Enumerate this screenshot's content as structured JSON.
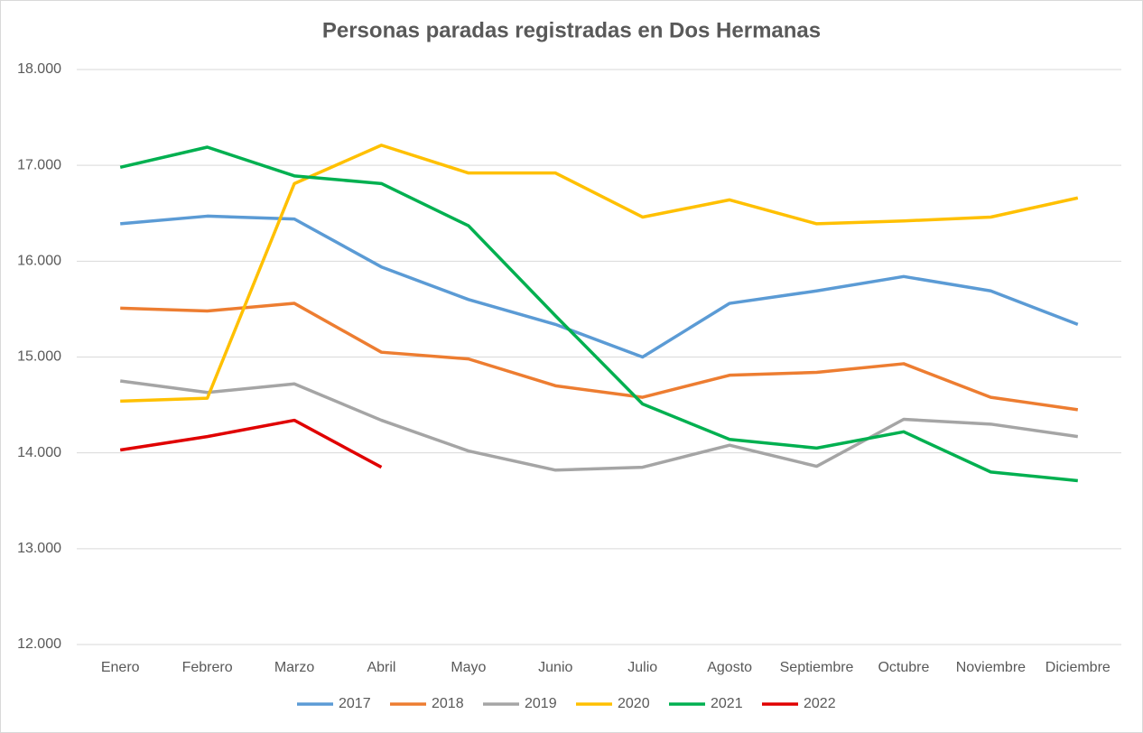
{
  "chart_data": {
    "type": "line",
    "title": "Personas paradas registradas en Dos Hermanas",
    "categories": [
      "Enero",
      "Febrero",
      "Marzo",
      "Abril",
      "Mayo",
      "Junio",
      "Julio",
      "Agosto",
      "Septiembre",
      "Octubre",
      "Noviembre",
      "Diciembre"
    ],
    "series": [
      {
        "name": "2017",
        "color": "#5b9bd5",
        "values": [
          16390,
          16470,
          16440,
          15940,
          15600,
          15340,
          15000,
          15560,
          15690,
          15840,
          15690,
          15340
        ]
      },
      {
        "name": "2018",
        "color": "#ed7d31",
        "values": [
          15510,
          15480,
          15560,
          15050,
          14980,
          14700,
          14580,
          14810,
          14840,
          14930,
          14580,
          14450
        ]
      },
      {
        "name": "2019",
        "color": "#a5a5a5",
        "values": [
          14750,
          14630,
          14720,
          14340,
          14020,
          13820,
          13850,
          14080,
          13860,
          14350,
          14300,
          14170
        ]
      },
      {
        "name": "2020",
        "color": "#ffc000",
        "values": [
          14540,
          14570,
          16810,
          17210,
          16920,
          16920,
          16460,
          16640,
          16390,
          16420,
          16460,
          16660
        ]
      },
      {
        "name": "2021",
        "color": "#00b050",
        "values": [
          16980,
          17190,
          16890,
          16810,
          16370,
          15430,
          14510,
          14140,
          14050,
          14220,
          13800,
          13710
        ]
      },
      {
        "name": "2022",
        "color": "#e00000",
        "values": [
          14030,
          14170,
          14340,
          13850,
          null,
          null,
          null,
          null,
          null,
          null,
          null,
          null
        ]
      }
    ],
    "ylim": [
      12000,
      18000
    ],
    "yticks": [
      {
        "value": 12000,
        "label": "12.000"
      },
      {
        "value": 13000,
        "label": "13.000"
      },
      {
        "value": 14000,
        "label": "14.000"
      },
      {
        "value": 15000,
        "label": "15.000"
      },
      {
        "value": 16000,
        "label": "16.000"
      },
      {
        "value": 17000,
        "label": "17.000"
      },
      {
        "value": 18000,
        "label": "18.000"
      }
    ],
    "grid": true,
    "legend": "bottom"
  }
}
